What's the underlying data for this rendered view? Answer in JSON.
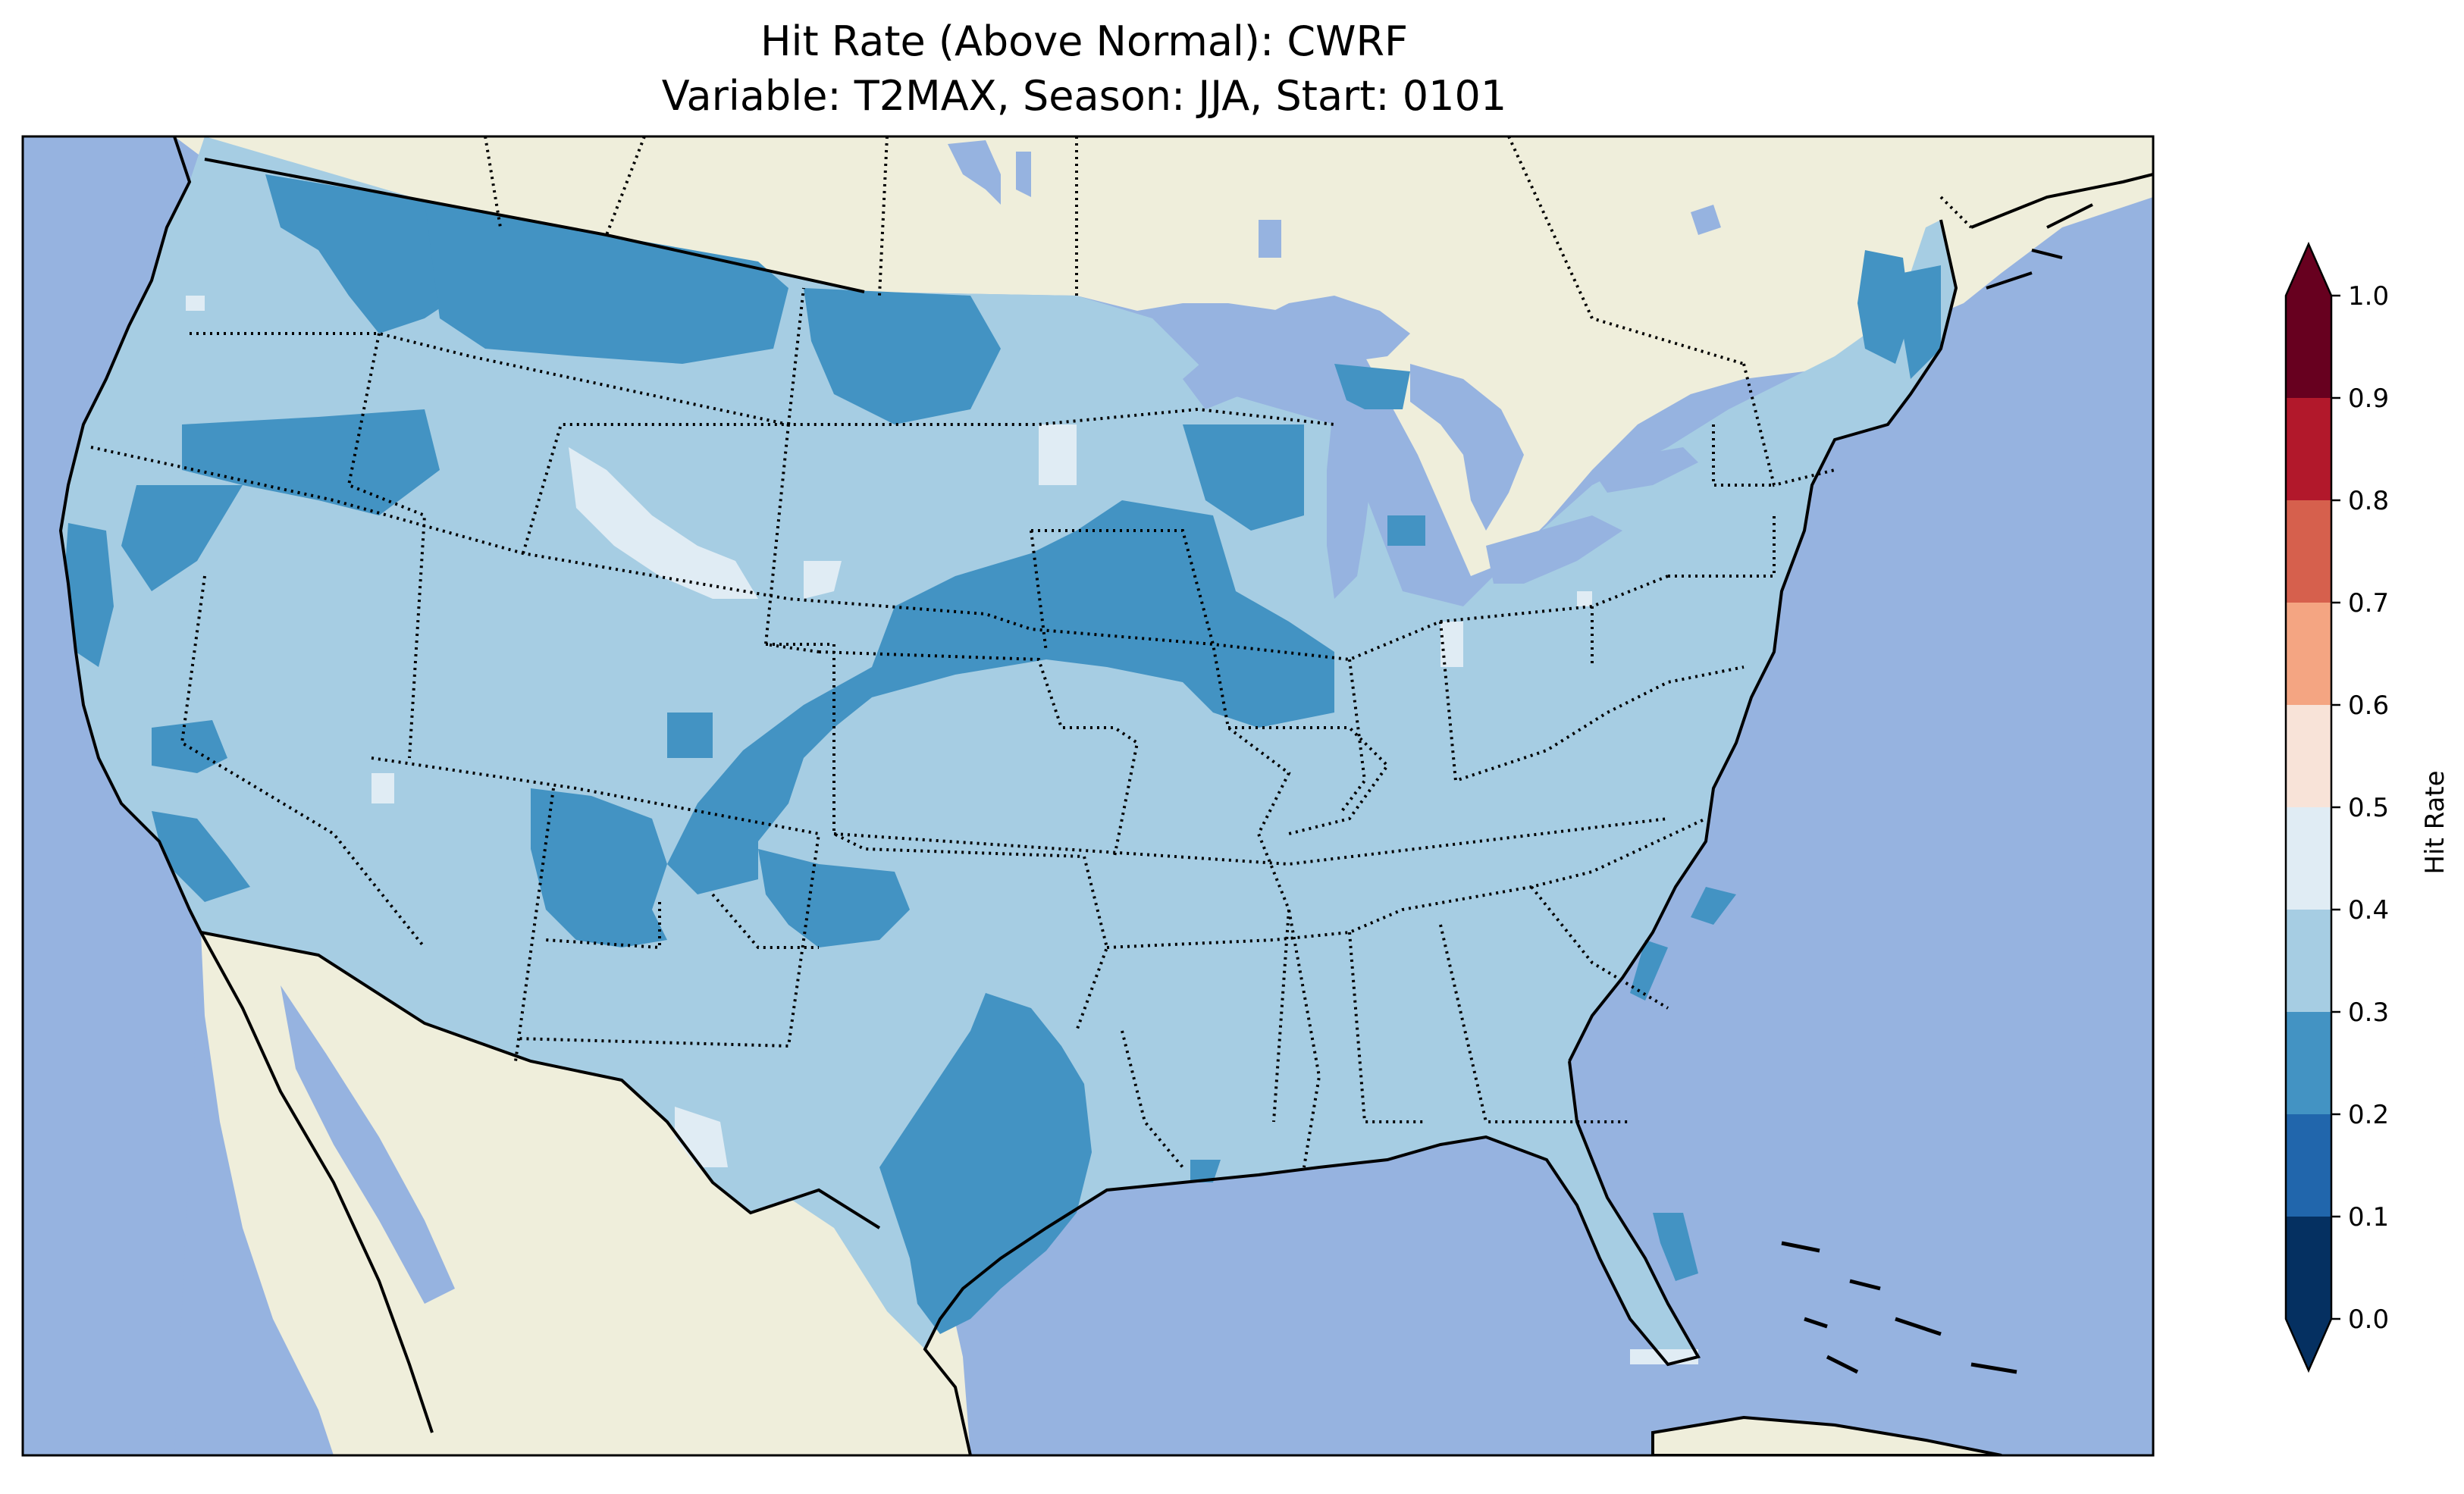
{
  "title": {
    "line1": "Hit Rate (Above Normal): CWRF",
    "line2": "Variable: T2MAX, Season: JJA, Start: 0101"
  },
  "colors": {
    "ocean": "#96b3e0",
    "land": "#efeedb",
    "boundary": "#000000"
  },
  "colorbar": {
    "label": "Hit Rate",
    "extend": "both",
    "ticks": [
      "0.0",
      "0.1",
      "0.2",
      "0.3",
      "0.4",
      "0.5",
      "0.6",
      "0.7",
      "0.8",
      "0.9",
      "1.0"
    ],
    "under_color": "#053061",
    "over_color": "#67001f",
    "bins": [
      {
        "from": 0.0,
        "to": 0.1,
        "color": "#053061"
      },
      {
        "from": 0.1,
        "to": 0.2,
        "color": "#2166ac"
      },
      {
        "from": 0.2,
        "to": 0.3,
        "color": "#4393c3"
      },
      {
        "from": 0.3,
        "to": 0.4,
        "color": "#a6cde3"
      },
      {
        "from": 0.4,
        "to": 0.5,
        "color": "#e0ecf4"
      },
      {
        "from": 0.5,
        "to": 0.6,
        "color": "#f8e3d8"
      },
      {
        "from": 0.6,
        "to": 0.7,
        "color": "#f4a582"
      },
      {
        "from": 0.7,
        "to": 0.8,
        "color": "#d6604d"
      },
      {
        "from": 0.8,
        "to": 0.9,
        "color": "#b2182b"
      },
      {
        "from": 0.9,
        "to": 1.0,
        "color": "#67001f"
      }
    ]
  }
}
